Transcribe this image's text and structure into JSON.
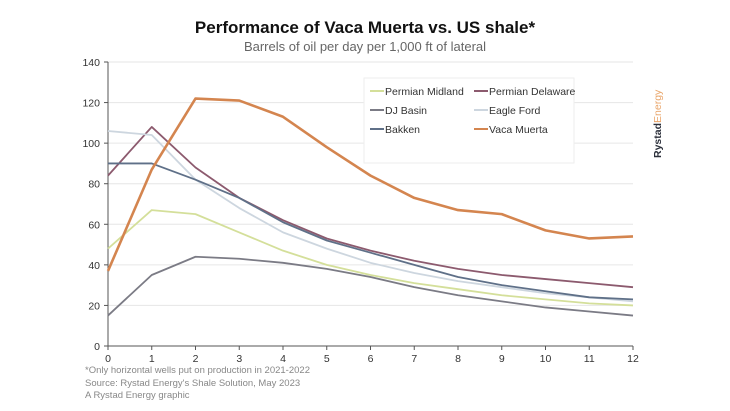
{
  "chart_data": {
    "type": "line",
    "title": "Performance of Vaca Muerta vs. US shale*",
    "subtitle": "Barrels of oil per day per 1,000 ft of lateral",
    "xlabel": "",
    "ylabel": "",
    "x": [
      0,
      1,
      2,
      3,
      4,
      5,
      6,
      7,
      8,
      9,
      10,
      11,
      12
    ],
    "xlim": [
      0,
      12
    ],
    "ylim": [
      0,
      140
    ],
    "yticks": [
      0,
      20,
      40,
      60,
      80,
      100,
      120,
      140
    ],
    "xticks": [
      0,
      1,
      2,
      3,
      4,
      5,
      6,
      7,
      8,
      9,
      10,
      11,
      12
    ],
    "grid": true,
    "legend_position": "top-right",
    "series": [
      {
        "name": "Permian Midland",
        "color": "#d4df9a",
        "values": [
          48,
          67,
          65,
          56,
          47,
          40,
          35,
          31,
          28,
          25,
          23,
          21,
          20
        ]
      },
      {
        "name": "Permian Delaware",
        "color": "#8c5a6e",
        "values": [
          84,
          108,
          88,
          73,
          62,
          53,
          47,
          42,
          38,
          35,
          33,
          31,
          29
        ]
      },
      {
        "name": "DJ Basin",
        "color": "#7b7b85",
        "values": [
          15,
          35,
          44,
          43,
          41,
          38,
          34,
          29,
          25,
          22,
          19,
          17,
          15
        ]
      },
      {
        "name": "Eagle Ford",
        "color": "#cdd6df",
        "values": [
          106,
          104,
          82,
          68,
          56,
          48,
          41,
          36,
          32,
          29,
          26,
          24,
          22
        ]
      },
      {
        "name": "Bakken",
        "color": "#5f7088",
        "values": [
          90,
          90,
          82,
          73,
          61,
          52,
          46,
          40,
          34,
          30,
          27,
          24,
          23
        ]
      },
      {
        "name": "Vaca Muerta",
        "color": "#d4854f",
        "values": [
          37,
          87,
          122,
          121,
          113,
          98,
          84,
          73,
          67,
          65,
          57,
          53,
          54
        ]
      }
    ]
  },
  "notes": [
    "*Only horizontal wells put on production in 2021-2022",
    "Source: Rystad Energy's Shale Solution, May 2023",
    "A Rystad Energy graphic"
  ],
  "brand": {
    "part1": "Rystad",
    "part2": "Energy",
    "color1": "#2b2f3a",
    "color2": "#e9a56a"
  }
}
